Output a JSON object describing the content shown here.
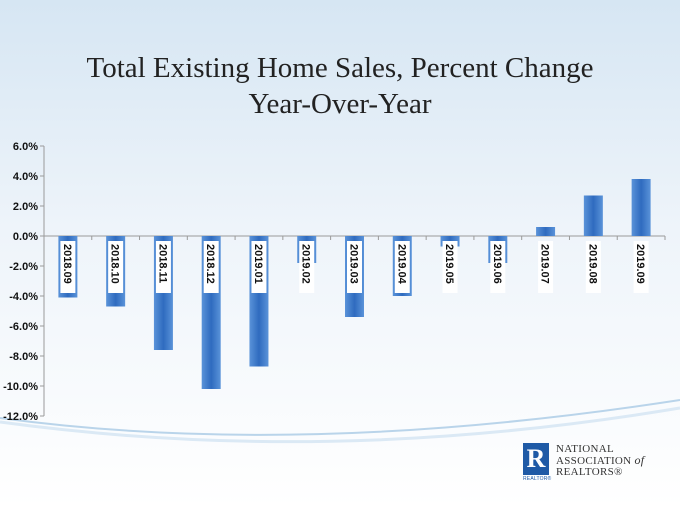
{
  "chart_data": {
    "type": "bar",
    "title_line1": "Total Existing Home Sales, Percent Change",
    "title_line2": "Year-Over-Year",
    "categories": [
      "2018.09",
      "2018.10",
      "2018.11",
      "2018.12",
      "2019.01",
      "2019.02",
      "2019.03",
      "2019.04",
      "2019.05",
      "2019.06",
      "2019.07",
      "2019.08",
      "2019.09"
    ],
    "values": [
      -4.1,
      -4.7,
      -7.6,
      -10.2,
      -8.7,
      -1.8,
      -5.4,
      -4.0,
      -0.7,
      -1.8,
      0.6,
      2.7,
      3.8
    ],
    "yticks": [
      "6.0%",
      "4.0%",
      "2.0%",
      "0.0%",
      "-2.0%",
      "-4.0%",
      "-6.0%",
      "-8.0%",
      "-10.0%",
      "-12.0%"
    ],
    "ylim": [
      -12,
      6
    ],
    "xlabel": "",
    "ylabel": "",
    "colors": {
      "bar": "#2f6bbf",
      "bar_light": "#5a93d9",
      "label_bg": "#ffffff",
      "swoosh": "#b9d4ea"
    }
  },
  "logo": {
    "line1": "NATIONAL",
    "line2": "ASSOCIATION",
    "line2_suffix": "of",
    "line3": "REALTORS®",
    "mark": "R",
    "mark_sub": "REALTOR®"
  }
}
